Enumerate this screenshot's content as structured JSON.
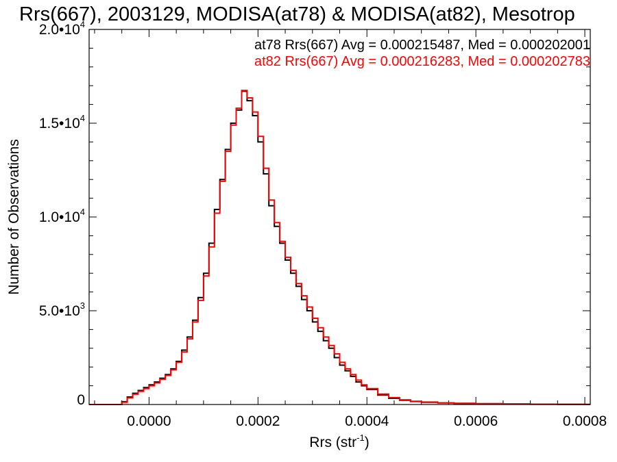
{
  "chart_data": {
    "type": "line",
    "title": "Rrs(667), 2003129, MODISA(at78) & MODISA(at82), Mesotrop",
    "xlabel_base": "Rrs (str",
    "xlabel_sup": "-1",
    "xlabel_close": ")",
    "ylabel": "Number of Observations",
    "xlim": [
      -0.00011,
      0.00081
    ],
    "ylim": [
      0,
      20000
    ],
    "x_ticks": [
      {
        "value": 0.0,
        "label": "0.0000"
      },
      {
        "value": 0.0002,
        "label": "0.0002"
      },
      {
        "value": 0.0004,
        "label": "0.0004"
      },
      {
        "value": 0.0006,
        "label": "0.0006"
      },
      {
        "value": 0.0008,
        "label": "0.0008"
      }
    ],
    "y_ticks": [
      {
        "value": 0,
        "mant": "0",
        "exp": ""
      },
      {
        "value": 5000,
        "mant": "5.0•10",
        "exp": "3"
      },
      {
        "value": 10000,
        "mant": "1.0•10",
        "exp": "4"
      },
      {
        "value": 15000,
        "mant": "1.5•10",
        "exp": "4"
      },
      {
        "value": 20000,
        "mant": "2.0•10",
        "exp": "4"
      }
    ],
    "legend_placement": "top-right",
    "series": [
      {
        "name": "at78",
        "color": "#000000",
        "legend": "at78 Rrs(667) Avg = 0.000215487, Med = 0.000202001",
        "x": [
          -0.00011,
          -6e-05,
          -5e-05,
          -4e-05,
          -3e-05,
          -2e-05,
          -1e-05,
          0.0,
          1e-05,
          2e-05,
          3e-05,
          4e-05,
          5e-05,
          6e-05,
          7e-05,
          8e-05,
          9e-05,
          0.0001,
          0.00011,
          0.00012,
          0.00013,
          0.00014,
          0.00015,
          0.00016,
          0.00017,
          0.00018,
          0.00019,
          0.0002,
          0.00021,
          0.00022,
          0.00023,
          0.00024,
          0.00025,
          0.00026,
          0.00027,
          0.00028,
          0.00029,
          0.0003,
          0.00031,
          0.00032,
          0.00033,
          0.00034,
          0.00035,
          0.00036,
          0.00037,
          0.00038,
          0.00039,
          0.0004,
          0.00042,
          0.00044,
          0.00046,
          0.00048,
          0.0005,
          0.00053,
          0.00056,
          0.0006,
          0.00065,
          0.0007,
          0.00075,
          0.0008,
          0.00081
        ],
        "y": [
          0,
          0,
          150,
          400,
          600,
          750,
          900,
          1050,
          1200,
          1400,
          1600,
          1900,
          2300,
          2900,
          3600,
          4500,
          5700,
          7000,
          8600,
          10400,
          12000,
          13600,
          15000,
          15700,
          16700,
          16200,
          15400,
          14000,
          12300,
          10600,
          9500,
          8600,
          7700,
          7000,
          6300,
          5600,
          5000,
          4400,
          3900,
          3400,
          3000,
          2500,
          2100,
          1800,
          1500,
          1200,
          1000,
          800,
          500,
          330,
          230,
          160,
          120,
          80,
          60,
          40,
          25,
          15,
          10,
          5,
          5
        ]
      },
      {
        "name": "at82",
        "color": "#ff0000",
        "legend": "at82 Rrs(667) Avg = 0.000216283, Med = 0.000202783",
        "x": [
          -0.00011,
          -6e-05,
          -5e-05,
          -4e-05,
          -3e-05,
          -2e-05,
          -1e-05,
          0.0,
          1e-05,
          2e-05,
          3e-05,
          4e-05,
          5e-05,
          6e-05,
          7e-05,
          8e-05,
          9e-05,
          0.0001,
          0.00011,
          0.00012,
          0.00013,
          0.00014,
          0.00015,
          0.00016,
          0.00017,
          0.00018,
          0.00019,
          0.0002,
          0.00021,
          0.00022,
          0.00023,
          0.00024,
          0.00025,
          0.00026,
          0.00027,
          0.00028,
          0.00029,
          0.0003,
          0.00031,
          0.00032,
          0.00033,
          0.00034,
          0.00035,
          0.00036,
          0.00037,
          0.00038,
          0.00039,
          0.0004,
          0.00042,
          0.00044,
          0.00046,
          0.00048,
          0.0005,
          0.00053,
          0.00056,
          0.0006,
          0.00065,
          0.0007,
          0.00075,
          0.0008,
          0.00081
        ],
        "y": [
          0,
          0,
          120,
          350,
          550,
          700,
          850,
          1000,
          1150,
          1350,
          1550,
          1850,
          2250,
          2800,
          3500,
          4400,
          5550,
          6850,
          8400,
          10200,
          11900,
          13500,
          14900,
          15800,
          16750,
          16350,
          15600,
          14300,
          12600,
          10900,
          9700,
          8700,
          7850,
          7150,
          6450,
          5800,
          5200,
          4600,
          4100,
          3600,
          3150,
          2700,
          2250,
          1900,
          1600,
          1300,
          1050,
          850,
          560,
          370,
          250,
          175,
          130,
          90,
          65,
          45,
          28,
          18,
          12,
          6,
          6
        ]
      }
    ]
  }
}
